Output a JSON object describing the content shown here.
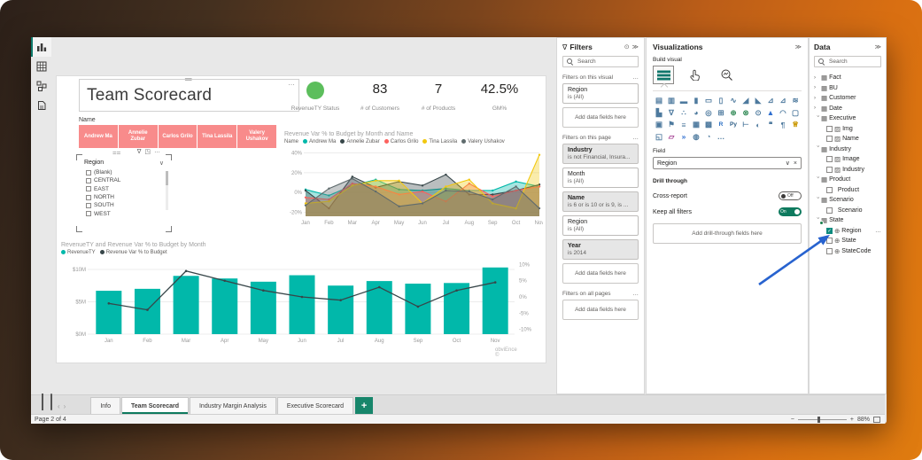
{
  "window": {
    "nav": [
      {
        "name": "report-view",
        "active": true
      },
      {
        "name": "table-view",
        "active": false
      },
      {
        "name": "model-view",
        "active": false
      },
      {
        "name": "dax-query-view",
        "active": false
      }
    ]
  },
  "canvas": {
    "title": "Team Scorecard",
    "kpis": [
      {
        "type": "status",
        "label": "RevenueTY Status",
        "color": "#5cbe5c"
      },
      {
        "type": "value",
        "value": "83",
        "label": "# of Customers"
      },
      {
        "type": "value",
        "value": "7",
        "label": "# of Products"
      },
      {
        "type": "value",
        "value": "42.5%",
        "label": "GM%"
      }
    ],
    "name_slicer": {
      "label": "Name",
      "buttons": [
        "Andrew Ma",
        "Annelie Zubar",
        "Carlos Grilo",
        "Tina Lassila",
        "Valery Ushakov"
      ]
    },
    "region_slicer": {
      "title": "Region",
      "options": [
        "(Blank)",
        "CENTRAL",
        "EAST",
        "NORTH",
        "SOUTH",
        "WEST"
      ]
    },
    "watermark": "obviEnce ©"
  },
  "chart_data": [
    {
      "type": "area",
      "title": "Revenue Var % to Budget by Month and Name",
      "legend_prefix": "Name",
      "legend_position": "top",
      "grid": true,
      "x": [
        "Jan",
        "Feb",
        "Mar",
        "Apr",
        "May",
        "Jun",
        "Jul",
        "Aug",
        "Sep",
        "Oct",
        "Nov"
      ],
      "ylim": [
        -24,
        44
      ],
      "yticks": [
        {
          "v": 40,
          "label": "40%"
        },
        {
          "v": 20,
          "label": "20%"
        },
        {
          "v": 0,
          "label": "0%"
        },
        {
          "v": -20,
          "label": "-20%"
        }
      ],
      "series": [
        {
          "name": "Andrew Ma",
          "color": "#01b8aa",
          "values": [
            3,
            -3,
            7,
            13,
            3,
            2,
            4,
            2,
            2,
            11,
            6
          ]
        },
        {
          "name": "Annelie Zubar",
          "color": "#374649",
          "values": [
            2,
            -16,
            16,
            5,
            11,
            7,
            18,
            -2,
            -2,
            2,
            8
          ]
        },
        {
          "name": "Carlos Grilo",
          "color": "#fd625e",
          "values": [
            -5,
            -7,
            9,
            6,
            -2,
            1,
            -9,
            9,
            -4,
            2,
            6
          ]
        },
        {
          "name": "Tina Lassila",
          "color": "#f2c80f",
          "values": [
            -11,
            -9,
            7,
            12,
            12,
            -11,
            6,
            13,
            -11,
            -16,
            38
          ]
        },
        {
          "name": "Valery Ushakov",
          "color": "#5f6b6d",
          "values": [
            -13,
            4,
            14,
            1,
            -14,
            -11,
            2,
            1,
            -7,
            6,
            -16
          ]
        }
      ]
    },
    {
      "type": "combo",
      "title": "RevenueTY and Revenue Var % to Budget by Month",
      "legend_position": "top",
      "grid": true,
      "x": [
        "Jan",
        "Feb",
        "Mar",
        "Apr",
        "May",
        "Jun",
        "Jul",
        "Aug",
        "Sep",
        "Oct",
        "Nov"
      ],
      "bar_series": {
        "name": "RevenueTY",
        "color": "#01b8aa",
        "values": [
          6.7,
          7.0,
          9.0,
          8.6,
          8.1,
          9.1,
          7.5,
          8.2,
          7.8,
          7.9,
          10.3
        ]
      },
      "line_series": {
        "name": "Revenue Var % to Budget",
        "color": "#374649",
        "values": [
          -2,
          -4,
          8,
          5,
          2,
          0,
          -1,
          3,
          -3,
          2,
          4.5
        ]
      },
      "ylim_left": [
        0,
        11.5
      ],
      "yticks_left": [
        {
          "v": 0,
          "label": "$0M"
        },
        {
          "v": 5,
          "label": "$5M"
        },
        {
          "v": 10,
          "label": "$10M"
        }
      ],
      "ylim_right": [
        -11.5,
        11.5
      ],
      "yticks_right": [
        {
          "v": 10,
          "label": "10%"
        },
        {
          "v": 5,
          "label": "5%"
        },
        {
          "v": 0,
          "label": "0%"
        },
        {
          "v": -5,
          "label": "-5%"
        },
        {
          "v": -10,
          "label": "-10%"
        }
      ]
    }
  ],
  "filters": {
    "title": "Filters",
    "search_placeholder": "Search",
    "sections": [
      {
        "label": "Filters on this visual",
        "cards": [
          {
            "title": "Region",
            "condition": "is (All)",
            "applied": false
          }
        ],
        "add_label": "Add data fields here"
      },
      {
        "label": "Filters on this page",
        "cards": [
          {
            "title": "Industry",
            "condition": "is not Financial, Insura...",
            "applied": true
          },
          {
            "title": "Month",
            "condition": "is (All)",
            "applied": false
          },
          {
            "title": "Name",
            "condition": "is 6 or is 10 or is 9, is ...",
            "applied": true
          },
          {
            "title": "Region",
            "condition": "is (All)",
            "applied": false
          },
          {
            "title": "Year",
            "condition": "is 2014",
            "applied": true
          }
        ],
        "add_label": "Add data fields here"
      },
      {
        "label": "Filters on all pages",
        "cards": [],
        "add_label": "Add data fields here"
      }
    ]
  },
  "visualizations": {
    "title": "Visualizations",
    "build_label": "Build visual",
    "modes": [
      {
        "name": "build-visual",
        "selected": true
      },
      {
        "name": "format-visual",
        "selected": false
      },
      {
        "name": "analytics",
        "selected": false
      }
    ],
    "gallery": [
      {
        "n": "stacked-bar-chart",
        "g": "▤"
      },
      {
        "n": "stacked-column-chart",
        "g": "▥"
      },
      {
        "n": "clustered-bar-chart",
        "g": "▬"
      },
      {
        "n": "clustered-column-chart",
        "g": "▮"
      },
      {
        "n": "100-stacked-bar-chart",
        "g": "▭"
      },
      {
        "n": "100-stacked-column-chart",
        "g": "▯"
      },
      {
        "n": "line-chart",
        "g": "∿"
      },
      {
        "n": "area-chart",
        "g": "◢"
      },
      {
        "n": "stacked-area-chart",
        "g": "◣"
      },
      {
        "n": "line-and-stacked-column-chart",
        "g": "⊿"
      },
      {
        "n": "line-and-clustered-column-chart",
        "g": "⊿"
      },
      {
        "n": "ribbon-chart",
        "g": "≋"
      },
      {
        "n": "waterfall-chart",
        "g": "▙"
      },
      {
        "n": "funnel-chart",
        "g": "∇"
      },
      {
        "n": "scatter-chart",
        "g": "∴"
      },
      {
        "n": "pie-chart",
        "g": "◕"
      },
      {
        "n": "donut-chart",
        "g": "◎"
      },
      {
        "n": "treemap",
        "g": "⊞"
      },
      {
        "n": "map",
        "g": "⊕",
        "c": "#3a8f5d"
      },
      {
        "n": "filled-map",
        "g": "⊗",
        "c": "#3a8f5d"
      },
      {
        "n": "shape-map",
        "g": "⊙"
      },
      {
        "n": "azure-map",
        "g": "▲",
        "c": "#2f6fd0"
      },
      {
        "n": "gauge",
        "g": "◠"
      },
      {
        "n": "card",
        "g": "▢"
      },
      {
        "n": "multi-row-card",
        "g": "▣"
      },
      {
        "n": "kpi",
        "g": "⚑"
      },
      {
        "n": "slicer",
        "g": "≡"
      },
      {
        "n": "table",
        "g": "▦"
      },
      {
        "n": "matrix",
        "g": "▩"
      },
      {
        "n": "r-script-visual",
        "g": "R",
        "c": "#276dc3"
      },
      {
        "n": "python-visual",
        "g": "Py",
        "c": "#2b5b84"
      },
      {
        "n": "decomposition-tree",
        "g": "⊢"
      },
      {
        "n": "key-influencers",
        "g": "◐"
      },
      {
        "n": "qa-visual",
        "g": "❝"
      },
      {
        "n": "smart-narrative",
        "g": "¶"
      },
      {
        "n": "goals",
        "g": "♕",
        "c": "#c99700"
      },
      {
        "n": "paginated-report",
        "g": "◱"
      },
      {
        "n": "power-apps",
        "g": "▱",
        "c": "#a33e92"
      },
      {
        "n": "power-automate",
        "g": "»",
        "c": "#2f6fd0"
      },
      {
        "n": "arcgis-map",
        "g": "◍"
      },
      {
        "n": "metrics",
        "g": "◔"
      },
      {
        "n": "more-visuals",
        "g": "…"
      }
    ],
    "field_label": "Field",
    "field_value": "Region",
    "drill_label": "Drill through",
    "cross_report_label": "Cross-report",
    "cross_report_state": "Off",
    "keep_filters_label": "Keep all filters",
    "keep_filters_state": "On",
    "add_drill_label": "Add drill-through fields here"
  },
  "data_panel": {
    "title": "Data",
    "search_placeholder": "Search",
    "tree": [
      {
        "label": "Fact",
        "type": "table",
        "expanded": false
      },
      {
        "label": "BU",
        "type": "table",
        "expanded": false
      },
      {
        "label": "Customer",
        "type": "table",
        "expanded": false
      },
      {
        "label": "Date",
        "type": "table",
        "expanded": false
      },
      {
        "label": "Executive",
        "type": "table",
        "expanded": true
      },
      {
        "label": "Img",
        "type": "field-image",
        "checked": false
      },
      {
        "label": "Name",
        "type": "field-image",
        "checked": false
      },
      {
        "label": "Industry",
        "type": "table",
        "expanded": true
      },
      {
        "label": "Image",
        "type": "field-image",
        "checked": false
      },
      {
        "label": "Industry",
        "type": "field-image",
        "checked": false
      },
      {
        "label": "Product",
        "type": "table",
        "expanded": true
      },
      {
        "label": "Product",
        "type": "field",
        "checked": false
      },
      {
        "label": "Scenario",
        "type": "table",
        "expanded": true
      },
      {
        "label": "Scenario",
        "type": "field",
        "checked": false
      },
      {
        "label": "State",
        "type": "table",
        "expanded": true,
        "badge": true
      },
      {
        "label": "Region",
        "type": "field-geo",
        "checked": true,
        "more": true
      },
      {
        "label": "State",
        "type": "field-geo",
        "checked": false
      },
      {
        "label": "StateCode",
        "type": "field-geo",
        "checked": false
      }
    ]
  },
  "bottom": {
    "tabs": [
      {
        "label": "Info",
        "active": false
      },
      {
        "label": "Team Scorecard",
        "active": true
      },
      {
        "label": "Industry Margin Analysis",
        "active": false
      },
      {
        "label": "Executive Scorecard",
        "active": false
      }
    ],
    "add_page": "+",
    "page_status": "Page 2 of 4",
    "zoom": "88%"
  },
  "colors": {
    "accent_teal": "#01b8aa",
    "pbi_green": "#0e7a5e",
    "salmon": "#f88b8b",
    "status_green": "#5cbe5c",
    "arrow_blue": "#2863cf"
  }
}
